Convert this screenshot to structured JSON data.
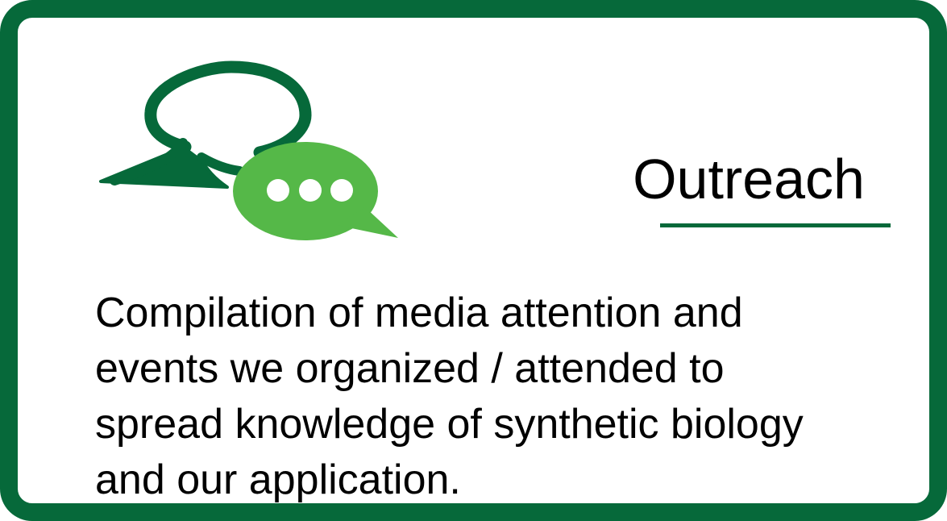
{
  "card": {
    "title": "Outreach",
    "description": "Compilation of media attention and\nevents we organized / attended to\nspread knowledge of synthetic biology\nand our application.",
    "icon": "chat-bubbles-icon",
    "colors": {
      "border": "#06693a",
      "accent_light": "#55b848",
      "underline": "#06693a",
      "text": "#000000",
      "background": "#ffffff"
    }
  }
}
